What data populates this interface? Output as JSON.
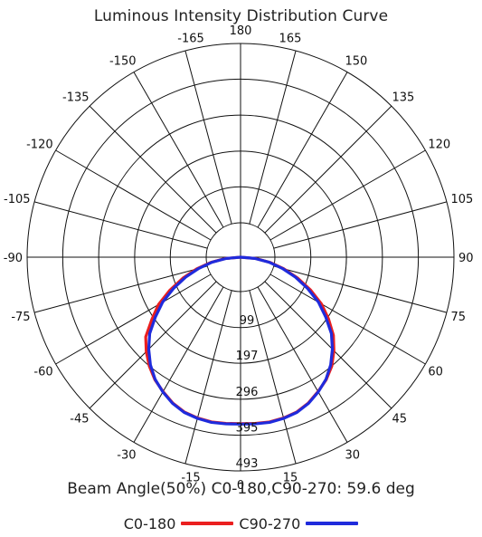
{
  "title": "Luminous Intensity Distribution Curve",
  "beam_angle_text": "Beam Angle(50%) C0-180,C90-270: 59.6 deg",
  "chart_data": {
    "type": "polar",
    "title": "Luminous Intensity Distribution Curve",
    "angular_tick_labels": [
      "180",
      "165",
      "150",
      "135",
      "120",
      "105",
      "90",
      "75",
      "60",
      "45",
      "30",
      "15",
      "0",
      "-15",
      "-30",
      "-45",
      "-60",
      "-75",
      "-90",
      "-105",
      "-120",
      "-135",
      "-150",
      "-165"
    ],
    "radial_tick_labels": [
      "99",
      "197",
      "296",
      "395",
      "493"
    ],
    "radial_tick_values": [
      99,
      197,
      296,
      395,
      493
    ],
    "radial_max": 493,
    "series": [
      {
        "name": "C0-180",
        "color": "#ea1f1f",
        "angles_deg": [
          -90,
          -85,
          -80,
          -75,
          -70,
          -65,
          -60,
          -55,
          -50,
          -45,
          -40,
          -35,
          -30,
          -25,
          -20,
          -15,
          -10,
          -5,
          0,
          5,
          10,
          15,
          20,
          25,
          30,
          35,
          40,
          45,
          50,
          55,
          60,
          65,
          70,
          75,
          80,
          85,
          90
        ],
        "values": [
          0,
          35,
          70,
          105,
          142,
          180,
          219,
          250,
          286,
          308,
          328,
          345,
          358,
          371,
          380,
          384,
          386,
          385,
          384,
          385,
          386,
          384,
          380,
          371,
          358,
          345,
          328,
          305,
          280,
          248,
          216,
          178,
          140,
          103,
          69,
          35,
          0
        ]
      },
      {
        "name": "C90-270",
        "color": "#1f2bdc",
        "angles_deg": [
          -90,
          -85,
          -80,
          -75,
          -70,
          -65,
          -60,
          -55,
          -50,
          -45,
          -40,
          -35,
          -30,
          -25,
          -20,
          -15,
          -10,
          -5,
          0,
          5,
          10,
          15,
          20,
          25,
          30,
          35,
          40,
          45,
          50,
          55,
          60,
          65,
          70,
          75,
          80,
          85,
          90
        ],
        "values": [
          0,
          33,
          67,
          100,
          135,
          171,
          208,
          240,
          274,
          300,
          324,
          344,
          359,
          372,
          381,
          385,
          387,
          386,
          385,
          386,
          387,
          385,
          381,
          372,
          359,
          344,
          324,
          300,
          274,
          240,
          208,
          171,
          135,
          100,
          67,
          33,
          0
        ]
      }
    ],
    "legend_position": "bottom-center",
    "grid": true
  }
}
